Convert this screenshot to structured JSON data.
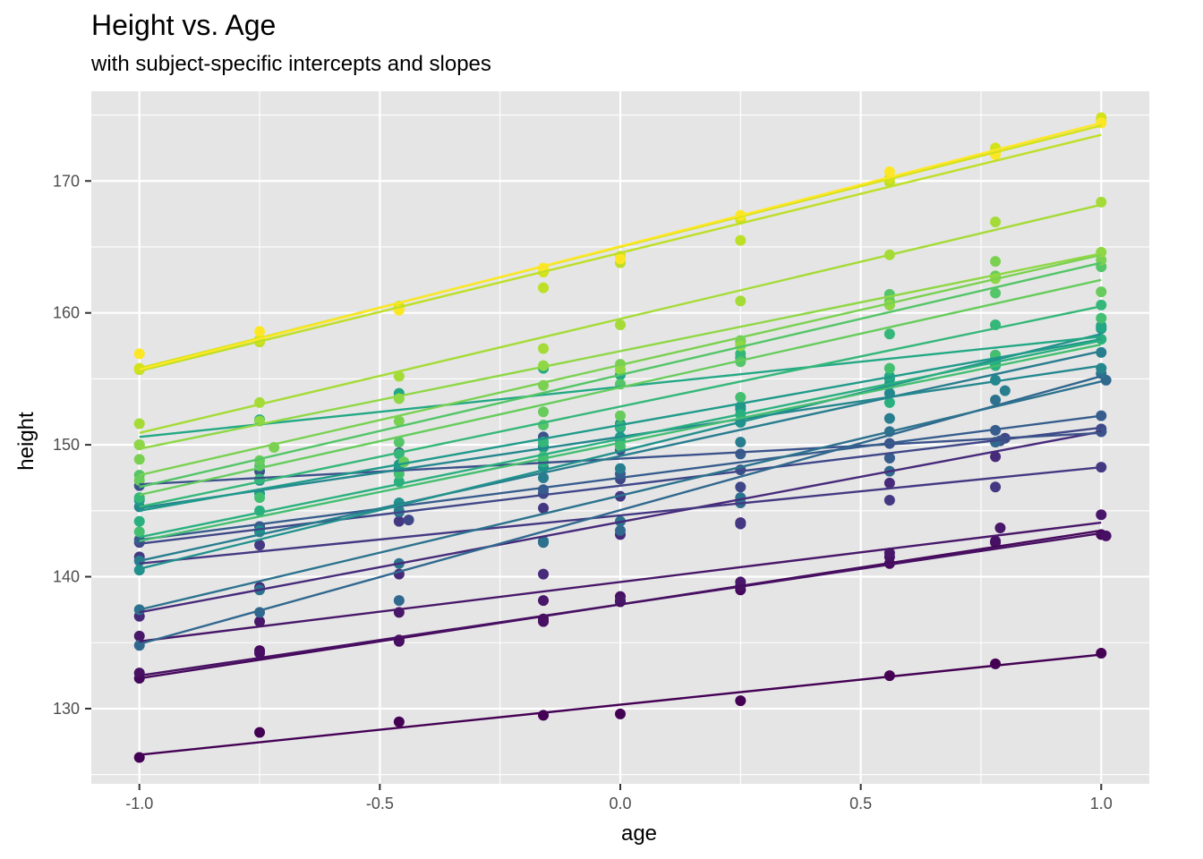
{
  "chart_data": {
    "type": "scatter",
    "title": "Height vs. Age",
    "subtitle": "with subject-specific intercepts and slopes",
    "xlabel": "age",
    "ylabel": "height",
    "xlim": [
      -1.1,
      1.1
    ],
    "ylim": [
      124.3,
      176.8
    ],
    "xticks": [
      -1.0,
      -0.5,
      0.0,
      0.5,
      1.0
    ],
    "xtick_labels": [
      "-1.0",
      "-0.5",
      "0.0",
      "0.5",
      "1.0"
    ],
    "yticks": [
      130,
      140,
      150,
      160,
      170
    ],
    "ytick_labels": [
      "130",
      "140",
      "150",
      "160",
      "170"
    ],
    "grid": true,
    "panel_background": "#e5e5e5",
    "grid_color": "#ffffff",
    "color_scale": "viridis",
    "series": [
      {
        "color": "#440154",
        "line": [
          126.5,
          134.1
        ],
        "points": [
          [
            -1.0,
            126.3
          ],
          [
            -0.75,
            128.2
          ],
          [
            -0.46,
            129.0
          ],
          [
            -0.16,
            129.5
          ],
          [
            0.0,
            129.6
          ],
          [
            0.25,
            130.6
          ],
          [
            0.56,
            132.5
          ],
          [
            0.78,
            133.4
          ],
          [
            1.0,
            134.2
          ]
        ]
      },
      {
        "color": "#46085c",
        "line": [
          132.3,
          143.5
        ],
        "points": [
          [
            -1.0,
            132.3
          ],
          [
            -0.75,
            134.4
          ],
          [
            -0.46,
            135.1
          ],
          [
            -0.16,
            136.8
          ],
          [
            0.0,
            138.1
          ],
          [
            0.25,
            139.0
          ],
          [
            0.56,
            141.0
          ],
          [
            0.78,
            142.6
          ],
          [
            1.0,
            143.2
          ]
        ]
      },
      {
        "color": "#471063",
        "line": [
          132.5,
          143.3
        ],
        "points": [
          [
            -1.0,
            132.7
          ],
          [
            -0.75,
            134.2
          ],
          [
            -0.46,
            135.2
          ],
          [
            -0.16,
            136.6
          ],
          [
            0.0,
            138.5
          ],
          [
            0.25,
            139.3
          ],
          [
            0.56,
            141.5
          ],
          [
            0.78,
            142.7
          ],
          [
            1.01,
            143.1
          ]
        ]
      },
      {
        "color": "#481769",
        "line": [
          135.1,
          144.1
        ],
        "points": [
          [
            -1.0,
            135.5
          ],
          [
            -0.75,
            136.6
          ],
          [
            -0.46,
            137.3
          ],
          [
            -0.16,
            138.2
          ],
          [
            0.0,
            138.2
          ],
          [
            0.25,
            139.6
          ],
          [
            0.56,
            141.8
          ],
          [
            0.79,
            143.7
          ],
          [
            1.0,
            144.7
          ]
        ]
      },
      {
        "color": "#472a7a",
        "line": [
          137.3,
          151.0
        ],
        "points": [
          [
            -1.0,
            137.0
          ],
          [
            -0.75,
            139.2
          ],
          [
            -0.46,
            140.2
          ],
          [
            -0.16,
            140.2
          ],
          [
            0.0,
            143.2
          ],
          [
            0.25,
            144.1
          ],
          [
            0.56,
            147.1
          ],
          [
            0.78,
            149.1
          ],
          [
            1.0,
            151.0
          ]
        ]
      },
      {
        "color": "#453882",
        "line": [
          141.0,
          148.3
        ],
        "points": [
          [
            -1.0,
            141.5
          ],
          [
            -0.75,
            142.4
          ],
          [
            -0.46,
            144.2
          ],
          [
            -0.16,
            145.2
          ],
          [
            0.0,
            146.1
          ],
          [
            0.25,
            144.0
          ],
          [
            0.56,
            145.8
          ],
          [
            0.78,
            146.8
          ],
          [
            1.0,
            148.3
          ]
        ]
      },
      {
        "color": "#3f4788",
        "line": [
          142.5,
          151.3
        ],
        "points": [
          [
            -1.0,
            142.6
          ],
          [
            -0.75,
            143.8
          ],
          [
            -0.44,
            144.3
          ],
          [
            -0.16,
            146.3
          ],
          [
            0.0,
            147.4
          ],
          [
            0.25,
            146.8
          ],
          [
            0.56,
            149.0
          ],
          [
            0.8,
            150.5
          ],
          [
            1.0,
            151.2
          ]
        ]
      },
      {
        "color": "#3b528b",
        "line": [
          147.0,
          150.9
        ],
        "points": [
          [
            -1.0,
            146.9
          ],
          [
            -0.75,
            148.0
          ],
          [
            -0.46,
            149.4
          ],
          [
            -0.16,
            150.6
          ],
          [
            0.0,
            149.6
          ],
          [
            0.25,
            148.1
          ],
          [
            0.56,
            150.1
          ],
          [
            0.79,
            150.3
          ],
          [
            1.0,
            151.0
          ]
        ]
      },
      {
        "color": "#365d8d",
        "line": [
          142.8,
          152.2
        ],
        "points": [
          [
            -1.0,
            142.8
          ],
          [
            -0.75,
            143.8
          ],
          [
            -0.46,
            144.9
          ],
          [
            -0.16,
            146.6
          ],
          [
            0.0,
            147.8
          ],
          [
            0.25,
            149.3
          ],
          [
            0.56,
            149.0
          ],
          [
            0.78,
            151.1
          ],
          [
            1.0,
            152.2
          ]
        ]
      },
      {
        "color": "#31688e",
        "line": [
          134.9,
          155.2
        ],
        "points": [
          [
            -1.0,
            134.8
          ],
          [
            -0.75,
            137.3
          ],
          [
            -0.46,
            138.2
          ],
          [
            -0.16,
            142.6
          ],
          [
            0.0,
            143.5
          ],
          [
            0.25,
            145.6
          ],
          [
            0.56,
            148.0
          ],
          [
            0.78,
            150.2
          ],
          [
            1.01,
            154.9
          ]
        ]
      },
      {
        "color": "#2c728e",
        "line": [
          137.5,
          154.8
        ],
        "points": [
          [
            -1.0,
            137.5
          ],
          [
            -0.75,
            139.0
          ],
          [
            -0.46,
            141.0
          ],
          [
            -0.16,
            142.7
          ],
          [
            0.0,
            144.2
          ],
          [
            0.25,
            146.0
          ],
          [
            0.56,
            151.0
          ],
          [
            0.78,
            153.4
          ],
          [
            1.0,
            155.4
          ]
        ]
      },
      {
        "color": "#287d8e",
        "line": [
          141.2,
          157.1
        ],
        "points": [
          [
            -1.0,
            141.2
          ],
          [
            -0.75,
            143.4
          ],
          [
            -0.46,
            145.0
          ],
          [
            -0.16,
            147.5
          ],
          [
            0.0,
            148.2
          ],
          [
            0.25,
            150.2
          ],
          [
            0.56,
            152.0
          ],
          [
            0.8,
            154.1
          ],
          [
            1.0,
            157.0
          ]
        ]
      },
      {
        "color": "#24878e",
        "line": [
          145.2,
          156.0
        ],
        "points": [
          [
            -1.0,
            145.3
          ],
          [
            -0.75,
            147.3
          ],
          [
            -0.46,
            148.2
          ],
          [
            -0.16,
            149.9
          ],
          [
            0.0,
            151.3
          ],
          [
            0.25,
            152.9
          ],
          [
            0.56,
            153.9
          ],
          [
            0.78,
            154.9
          ],
          [
            1.0,
            155.8
          ]
        ]
      },
      {
        "color": "#21918c",
        "line": [
          140.6,
          158.4
        ],
        "points": [
          [
            -1.0,
            140.5
          ],
          [
            -0.75,
            143.5
          ],
          [
            -0.46,
            145.6
          ],
          [
            -0.16,
            148.3
          ],
          [
            0.0,
            151.6
          ],
          [
            0.25,
            151.7
          ],
          [
            0.56,
            154.6
          ],
          [
            0.78,
            156.2
          ],
          [
            1.0,
            158.8
          ]
        ]
      },
      {
        "color": "#1f9a8a",
        "line": [
          145.0,
          158.0
        ],
        "points": [
          [
            -1.0,
            145.8
          ],
          [
            -0.75,
            146.3
          ],
          [
            -0.46,
            148.5
          ],
          [
            -0.16,
            149.8
          ],
          [
            0.0,
            150.6
          ],
          [
            0.25,
            152.7
          ],
          [
            0.56,
            155.0
          ],
          [
            0.78,
            156.8
          ],
          [
            1.0,
            159.0
          ]
        ]
      },
      {
        "color": "#22a884",
        "line": [
          150.6,
          158.2
        ],
        "points": [
          [
            -1.0,
            150.0
          ],
          [
            -0.75,
            151.9
          ],
          [
            -0.46,
            153.9
          ],
          [
            -0.16,
            155.8
          ],
          [
            0.0,
            155.3
          ],
          [
            0.25,
            156.6
          ],
          [
            0.56,
            155.2
          ],
          [
            0.78,
            156.5
          ],
          [
            1.0,
            158.9
          ]
        ]
      },
      {
        "color": "#2ab07f",
        "line": [
          143.0,
          157.9
        ],
        "points": [
          [
            -1.0,
            144.2
          ],
          [
            -0.75,
            145.0
          ],
          [
            -0.46,
            147.2
          ],
          [
            -0.16,
            148.7
          ],
          [
            0.0,
            150.3
          ],
          [
            0.25,
            152.3
          ],
          [
            0.56,
            153.2
          ],
          [
            0.78,
            156.0
          ],
          [
            1.0,
            158.0
          ]
        ]
      },
      {
        "color": "#35b779",
        "line": [
          145.3,
          160.5
        ],
        "points": [
          [
            -1.0,
            146.0
          ],
          [
            -0.75,
            147.4
          ],
          [
            -0.46,
            149.3
          ],
          [
            -0.16,
            150.2
          ],
          [
            0.0,
            151.4
          ],
          [
            0.25,
            156.9
          ],
          [
            0.56,
            158.4
          ],
          [
            0.78,
            159.1
          ],
          [
            1.0,
            160.6
          ]
        ]
      },
      {
        "color": "#44bf70",
        "line": [
          142.7,
          157.6
        ],
        "points": [
          [
            -1.0,
            143.4
          ],
          [
            -0.75,
            146.0
          ],
          [
            -0.46,
            147.8
          ],
          [
            -0.16,
            149.1
          ],
          [
            0.0,
            149.9
          ],
          [
            0.25,
            153.6
          ],
          [
            0.56,
            155.8
          ],
          [
            0.78,
            156.8
          ],
          [
            1.0,
            159.6
          ]
        ]
      },
      {
        "color": "#54c568",
        "line": [
          146.8,
          163.8
        ],
        "points": [
          [
            -1.0,
            147.7
          ],
          [
            -0.75,
            148.4
          ],
          [
            -0.46,
            150.2
          ],
          [
            -0.16,
            151.5
          ],
          [
            0.0,
            154.6
          ],
          [
            0.25,
            156.3
          ],
          [
            0.56,
            161.4
          ],
          [
            0.78,
            161.5
          ],
          [
            1.0,
            163.5
          ]
        ]
      },
      {
        "color": "#67cc5c",
        "line": [
          146.2,
          162.5
        ],
        "points": [
          [
            -1.0,
            147.3
          ],
          [
            -0.75,
            148.8
          ],
          [
            -0.45,
            148.7
          ],
          [
            -0.16,
            152.5
          ],
          [
            0.0,
            152.2
          ],
          [
            0.25,
            157.9
          ],
          [
            0.56,
            160.9
          ],
          [
            0.78,
            162.8
          ],
          [
            1.0,
            161.6
          ]
        ]
      },
      {
        "color": "#7ad151",
        "line": [
          147.7,
          164.4
        ],
        "points": [
          [
            -1.0,
            148.9
          ],
          [
            -0.72,
            149.8
          ],
          [
            -0.46,
            151.8
          ],
          [
            -0.16,
            154.5
          ],
          [
            0.0,
            156.1
          ],
          [
            0.25,
            157.8
          ],
          [
            0.56,
            160.6
          ],
          [
            0.78,
            163.9
          ],
          [
            1.0,
            164.0
          ]
        ]
      },
      {
        "color": "#8fd744",
        "line": [
          149.7,
          164.5
        ],
        "points": [
          [
            -1.0,
            150.0
          ],
          [
            -0.75,
            151.8
          ],
          [
            -0.46,
            153.5
          ],
          [
            -0.16,
            156.0
          ],
          [
            0.0,
            155.7
          ],
          [
            0.25,
            157.5
          ],
          [
            0.56,
            160.6
          ],
          [
            0.78,
            162.6
          ],
          [
            1.0,
            164.6
          ]
        ]
      },
      {
        "color": "#a5db36",
        "line": [
          150.9,
          168.2
        ],
        "points": [
          [
            -1.0,
            151.6
          ],
          [
            -0.75,
            153.2
          ],
          [
            -0.46,
            155.2
          ],
          [
            -0.16,
            157.3
          ],
          [
            0.0,
            159.1
          ],
          [
            0.25,
            160.9
          ],
          [
            0.56,
            164.4
          ],
          [
            0.78,
            166.9
          ],
          [
            1.0,
            168.4
          ]
        ]
      },
      {
        "color": "#bddf26",
        "line": [
          155.6,
          173.5
        ],
        "points": [
          [
            -1.0,
            155.7
          ],
          [
            -0.75,
            157.8
          ],
          [
            -0.46,
            160.4
          ],
          [
            -0.16,
            161.9
          ],
          [
            0.0,
            163.8
          ],
          [
            0.25,
            165.5
          ],
          [
            0.56,
            169.9
          ],
          [
            0.78,
            172.2
          ],
          [
            1.0,
            174.5
          ]
        ]
      },
      {
        "color": "#d2e21b",
        "line": [
          155.8,
          174.2
        ],
        "points": [
          [
            -1.0,
            155.8
          ],
          [
            -0.75,
            158.0
          ],
          [
            -0.46,
            160.5
          ],
          [
            -0.16,
            163.1
          ],
          [
            0.0,
            164.3
          ],
          [
            0.25,
            167.1
          ],
          [
            0.56,
            170.2
          ],
          [
            0.78,
            172.5
          ],
          [
            1.0,
            174.8
          ]
        ]
      },
      {
        "color": "#fde725",
        "line": [
          155.7,
          174.4
        ],
        "points": [
          [
            -1.0,
            156.9
          ],
          [
            -0.75,
            158.6
          ],
          [
            -0.46,
            160.2
          ],
          [
            -0.16,
            163.4
          ],
          [
            0.0,
            164.1
          ],
          [
            0.25,
            167.4
          ],
          [
            0.56,
            170.7
          ],
          [
            0.78,
            172.0
          ],
          [
            1.0,
            174.4
          ]
        ]
      }
    ]
  }
}
